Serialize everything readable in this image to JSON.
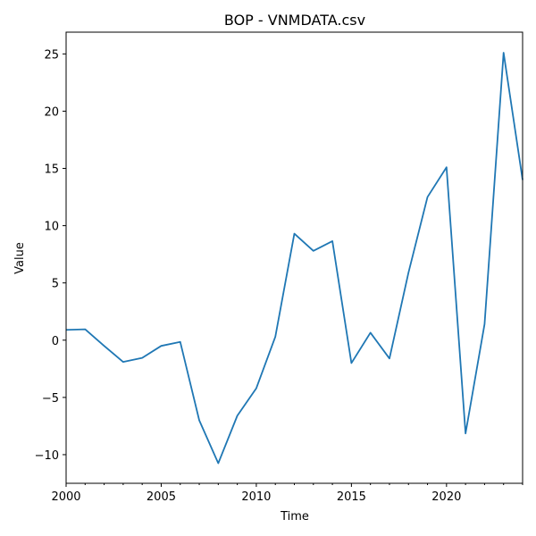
{
  "chart_data": {
    "type": "line",
    "title": "BOP - VNMDATA.csv",
    "xlabel": "Time",
    "ylabel": "Value",
    "xlim": [
      2000,
      2024
    ],
    "ylim": [
      -12.5,
      26.9
    ],
    "x_ticks": [
      2000,
      2005,
      2010,
      2015,
      2020
    ],
    "y_ticks": [
      -10,
      -5,
      0,
      5,
      10,
      15,
      20,
      25
    ],
    "grid": false,
    "legend": "none",
    "line_color": "#1f77b4",
    "series": [
      {
        "x": [
          2000,
          2001,
          2002,
          2003,
          2004,
          2005,
          2006,
          2007,
          2008,
          2009,
          2010,
          2011,
          2012,
          2013,
          2014,
          2015,
          2016,
          2017,
          2018,
          2019,
          2020,
          2021,
          2022,
          2023,
          2024
        ],
        "values": [
          0.9,
          0.95,
          -0.5,
          -1.9,
          -1.55,
          -0.5,
          -0.15,
          -7.0,
          -10.75,
          -6.6,
          -4.2,
          0.3,
          9.3,
          7.8,
          8.65,
          -2.0,
          0.65,
          -1.6,
          5.9,
          12.5,
          15.1,
          -8.15,
          1.4,
          25.1,
          14.0
        ]
      }
    ]
  }
}
